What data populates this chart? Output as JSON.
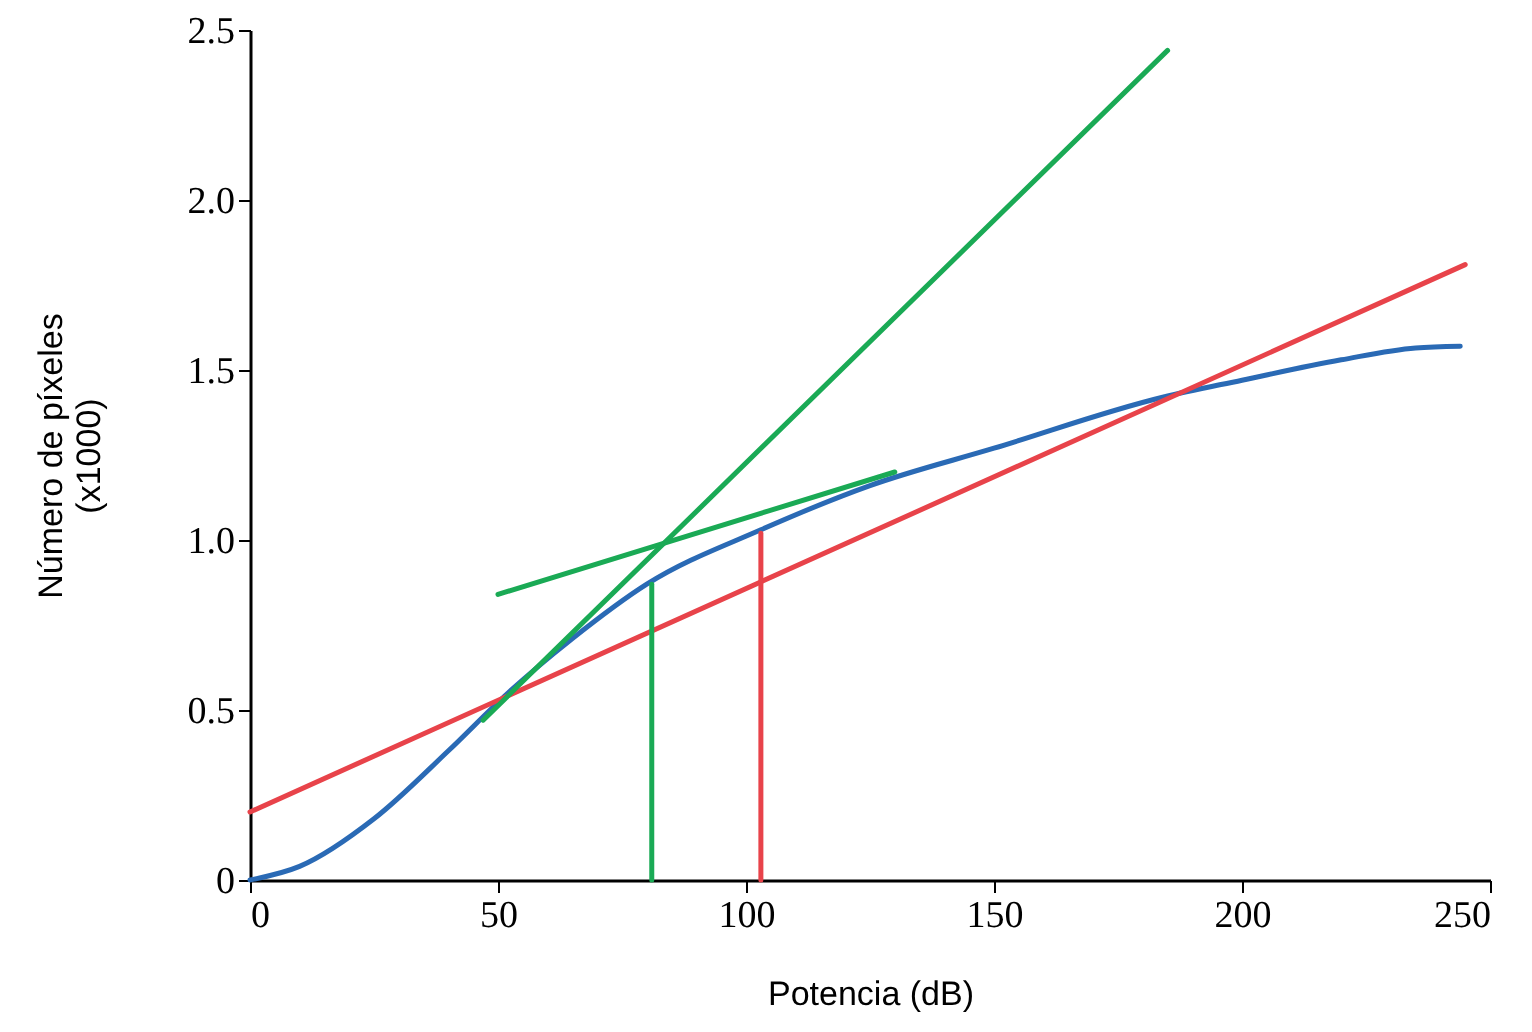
{
  "chart_data": {
    "type": "line",
    "xlabel": "Potencia (dB)",
    "ylabel": "Número de píxeles\n(x1000)",
    "xlim": [
      0,
      250
    ],
    "xticks": [
      0,
      50,
      100,
      150,
      200,
      250
    ],
    "ylim": [
      0,
      2.5
    ],
    "yticks": [
      0,
      {
        "value": 0.5,
        "label": "0.5"
      },
      {
        "value": 1,
        "label": "1.0"
      },
      {
        "value": 1.5,
        "label": "1.5"
      },
      {
        "value": 2,
        "label": "2.0"
      },
      {
        "value": 2.5,
        "label": "2.5"
      }
    ],
    "grid": false,
    "marker": "none",
    "line_style": "solid",
    "series": [
      {
        "color": "#2a6ab5",
        "x": [
          0,
          10,
          25,
          40,
          52,
          65,
          80,
          103,
          125,
          150,
          184,
          200,
          220,
          235,
          244
        ],
        "values": [
          0,
          0.04,
          0.18,
          0.38,
          0.55,
          0.71,
          0.87,
          1.03,
          1.16,
          1.27,
          1.42,
          1.47,
          1.53,
          1.565,
          1.57
        ]
      },
      {
        "color": "#e8434a",
        "x": [
          0,
          245
        ],
        "values": [
          0.2,
          1.81
        ]
      },
      {
        "color": "#1aaa55",
        "x": [
          47,
          185
        ],
        "values": [
          0.47,
          2.44
        ]
      },
      {
        "color": "#1aaa55",
        "x": [
          50,
          130
        ],
        "values": [
          0.84,
          1.2
        ]
      },
      {
        "color": "#1aaa55",
        "x": [
          81,
          81
        ],
        "values": [
          0,
          0.87
        ]
      },
      {
        "color": "#e8434a",
        "x": [
          103,
          103
        ],
        "values": [
          0,
          1.02
        ]
      }
    ]
  }
}
